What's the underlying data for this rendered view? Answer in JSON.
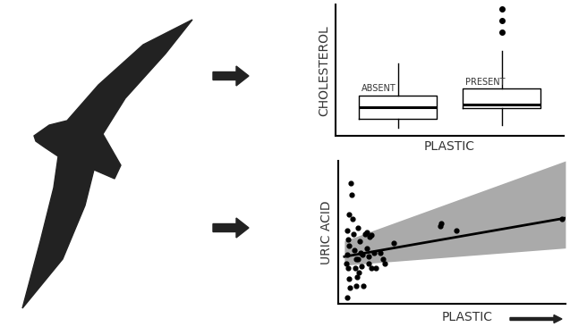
{
  "chart_data": [
    {
      "type": "box",
      "ylabel": "CHOLESTEROL",
      "xlabel": "PLASTIC",
      "categories": [
        "ABSENT",
        "PRESENT"
      ],
      "stats": [
        {
          "whislo": 6,
          "q1": 13,
          "med": 22,
          "q3": 31,
          "whishi": 55,
          "fliers": []
        },
        {
          "whislo": 8,
          "q1": 21,
          "med": 24,
          "q3": 36,
          "whishi": 65,
          "fliers": [
            79,
            88,
            97
          ]
        }
      ],
      "color": "#000000",
      "ylim": [
        0,
        100
      ],
      "yticks": [],
      "tick_labels": false
    },
    {
      "type": "scatter",
      "ylabel": "URIC ACID",
      "xlabel": "PLASTIC",
      "x": [
        5.5,
        5.9,
        4.7,
        3.9,
        4.3,
        4.7,
        3.9,
        3.5,
        4.3,
        4.7,
        5.1,
        3.9,
        6.7,
        7.1,
        7.9,
        7.5,
        8.7,
        9.4,
        9.8,
        9.1,
        10.2,
        11.0,
        11.8,
        12.6,
        12.6,
        13.4,
        13.8,
        14.6,
        15.7,
        16.5,
        18.5,
        19.7,
        20.5,
        24.4,
        44.9,
        45.3,
        52.0,
        98.4,
        7.9,
        6.3,
        8.7,
        10.6,
        8.3,
        13.4,
        14.6
      ],
      "y": [
        84.4,
        76.3,
        62.5,
        51.3,
        45.0,
        40.6,
        34.4,
        28.1,
        25.0,
        17.5,
        11.3,
        4.4,
        48.8,
        37.5,
        31.3,
        25.0,
        53.1,
        43.8,
        35.6,
        21.9,
        26.3,
        12.5,
        48.8,
        50.0,
        38.8,
        28.1,
        46.9,
        25.0,
        35.6,
        25.0,
        35.6,
        31.3,
        28.1,
        42.5,
        54.4,
        56.3,
        51.3,
        59.4,
        12.5,
        59.4,
        31.3,
        34.4,
        18.8,
        33.1,
        48.1
      ],
      "fit": {
        "x": [
          2.8,
          100
        ],
        "y": [
          33,
          60
        ]
      },
      "band": {
        "x": [
          2.8,
          100
        ],
        "lower": [
          27,
          39
        ],
        "upper": [
          44,
          100
        ]
      },
      "color": "#000000",
      "xlim": [
        0,
        100
      ],
      "ylim": [
        0,
        100
      ],
      "xticks": [],
      "yticks": [],
      "tick_labels": false
    }
  ]
}
